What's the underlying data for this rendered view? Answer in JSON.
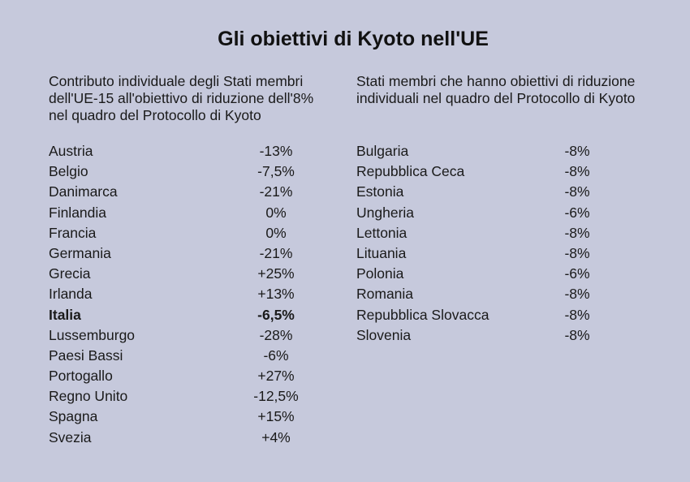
{
  "title": "Gli obiettivi di Kyoto nell'UE",
  "left": {
    "heading_lines": [
      "Contributo individuale degli Stati membri",
      "dell'UE-15 all'obiettivo di riduzione dell'8%",
      "nel quadro del Protocollo di Kyoto"
    ],
    "rows": [
      {
        "country": "Austria",
        "value": "-13%"
      },
      {
        "country": "Belgio",
        "value": "-7,5%"
      },
      {
        "country": "Danimarca",
        "value": "-21%"
      },
      {
        "country": "Finlandia",
        "value": "0%"
      },
      {
        "country": "Francia",
        "value": "0%"
      },
      {
        "country": "Germania",
        "value": "-21%"
      },
      {
        "country": "Grecia",
        "value": "+25%"
      },
      {
        "country": "Irlanda",
        "value": "+13%"
      },
      {
        "country": "Italia",
        "value": "-6,5%"
      },
      {
        "country": "Lussemburgo",
        "value": "-28%"
      },
      {
        "country": "Paesi Bassi",
        "value": "-6%"
      },
      {
        "country": "Portogallo",
        "value": "+27%"
      },
      {
        "country": "Regno Unito",
        "value": "-12,5%"
      },
      {
        "country": "Spagna",
        "value": "+15%"
      },
      {
        "country": "Svezia",
        "value": "+4%"
      }
    ]
  },
  "right": {
    "heading_lines": [
      "Stati membri che hanno obiettivi di riduzione",
      "individuali nel quadro del Protocollo di Kyoto"
    ],
    "rows": [
      {
        "country": "Bulgaria",
        "value": "-8%"
      },
      {
        "country": "Repubblica Ceca",
        "value": "-8%"
      },
      {
        "country": "Estonia",
        "value": "-8%"
      },
      {
        "country": "Ungheria",
        "value": "-6%"
      },
      {
        "country": "Lettonia",
        "value": "-8%"
      },
      {
        "country": "Lituania",
        "value": "-8%"
      },
      {
        "country": "Polonia",
        "value": "-6%"
      },
      {
        "country": "Romania",
        "value": "-8%"
      },
      {
        "country": "Repubblica Slovacca",
        "value": "-8%"
      },
      {
        "country": "Slovenia",
        "value": "-8%"
      }
    ]
  }
}
